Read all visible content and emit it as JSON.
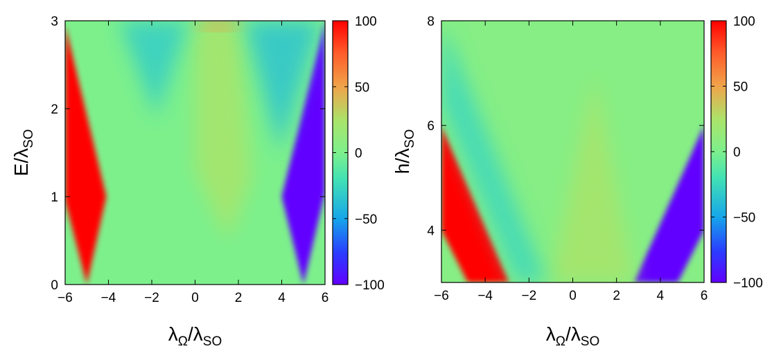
{
  "chart_data": [
    {
      "type": "heatmap",
      "xlabel": {
        "main": "λ",
        "sub1": "Ω",
        "mid": "/λ",
        "sub2": "SO"
      },
      "ylabel": {
        "main": "E/λ",
        "sub": "SO"
      },
      "xlim": [
        -6,
        6
      ],
      "ylim": [
        0,
        3
      ],
      "xticks": [
        "−6",
        "−4",
        "−2",
        "0",
        "2",
        "4",
        "6"
      ],
      "xtick_values": [
        -6,
        -4,
        -2,
        0,
        2,
        4,
        6
      ],
      "yticks": [
        "0",
        "1",
        "2",
        "3"
      ],
      "ytick_values": [
        0,
        1,
        2,
        3
      ],
      "colorbar": {
        "range": [
          -100,
          100
        ],
        "ticks": [
          "−100",
          "−50",
          "0",
          "50",
          "100"
        ],
        "tick_values": [
          -100,
          -50,
          0,
          50,
          100
        ]
      },
      "regions": [
        {
          "name": "red-region",
          "value": 100,
          "polygon": [
            [
              -6,
              2.95
            ],
            [
              -4.1,
              1.0
            ],
            [
              -5.0,
              0.0
            ],
            [
              -6,
              0.95
            ]
          ]
        },
        {
          "name": "blue-region",
          "value": -100,
          "polygon": [
            [
              6,
              3.0
            ],
            [
              4.0,
              1.0
            ],
            [
              5.0,
              0.0
            ],
            [
              6,
              1.05
            ]
          ]
        },
        {
          "name": "center-warm",
          "value": 25,
          "polygon": [
            [
              0,
              3.0
            ],
            [
              2,
              3.0
            ],
            [
              2.6,
              1.2
            ],
            [
              1.5,
              0.5
            ],
            [
              0,
              1.3
            ]
          ]
        },
        {
          "name": "top-orange",
          "value": 55,
          "polygon": [
            [
              0.2,
              3.0
            ],
            [
              2.0,
              3.0
            ],
            [
              1.9,
              2.9
            ],
            [
              0.3,
              2.9
            ]
          ]
        },
        {
          "name": "cyan-wedge-left",
          "value": -30,
          "polygon": [
            [
              -3.5,
              3.0
            ],
            [
              -0.3,
              3.0
            ],
            [
              -1.8,
              1.9
            ]
          ]
        },
        {
          "name": "cyan-wedge-right",
          "value": -35,
          "polygon": [
            [
              2.3,
              3.0
            ],
            [
              5.8,
              3.0
            ],
            [
              3.9,
              1.5
            ]
          ]
        }
      ]
    },
    {
      "type": "heatmap",
      "xlabel": {
        "main": "λ",
        "sub1": "Ω",
        "mid": "/λ",
        "sub2": "SO"
      },
      "ylabel": {
        "main": "h/λ",
        "sub": "SO"
      },
      "xlim": [
        -6,
        6
      ],
      "ylim": [
        3,
        8
      ],
      "xticks": [
        "−6",
        "−4",
        "−2",
        "0",
        "2",
        "4",
        "6"
      ],
      "xtick_values": [
        -6,
        -4,
        -2,
        0,
        2,
        4,
        6
      ],
      "yticks": [
        "4",
        "6",
        "8"
      ],
      "ytick_values": [
        4,
        6,
        8
      ],
      "colorbar": {
        "range": [
          -100,
          100
        ],
        "ticks": [
          "−100",
          "−50",
          "0",
          "50",
          "100"
        ],
        "tick_values": [
          -100,
          -50,
          0,
          50,
          100
        ]
      },
      "regions": [
        {
          "name": "red-region",
          "value": 100,
          "polygon": [
            [
              -6,
              6.0
            ],
            [
              -2.9,
              3.0
            ],
            [
              -4.8,
              3.0
            ],
            [
              -6,
              4.0
            ]
          ]
        },
        {
          "name": "blue-region",
          "value": -100,
          "polygon": [
            [
              6,
              6.0
            ],
            [
              2.8,
              3.0
            ],
            [
              4.8,
              3.0
            ],
            [
              6,
              4.0
            ]
          ]
        },
        {
          "name": "center-warm",
          "value": 25,
          "polygon": [
            [
              -1.0,
              3.0
            ],
            [
              2.8,
              3.0
            ],
            [
              1.0,
              7.0
            ]
          ]
        },
        {
          "name": "cyan-band-left",
          "value": -25,
          "polygon": [
            [
              -6,
              7.8
            ],
            [
              -5.8,
              7.8
            ],
            [
              -1.2,
              3.0
            ],
            [
              -2.6,
              3.0
            ],
            [
              -6,
              6.4
            ]
          ]
        }
      ]
    }
  ]
}
